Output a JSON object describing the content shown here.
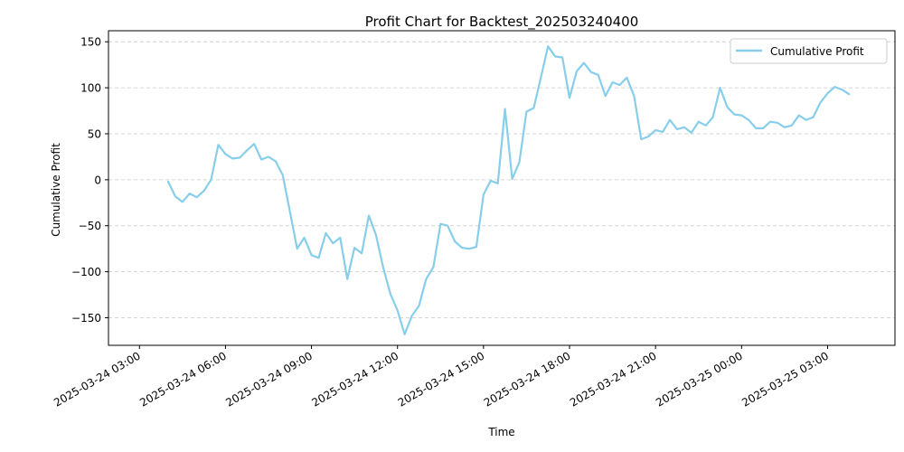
{
  "chart_data": {
    "type": "line",
    "title": "Profit Chart for Backtest_202503240400",
    "xlabel": "Time",
    "ylabel": "Cumulative Profit",
    "ylim": [
      -180,
      162
    ],
    "xlim_hours_from_start": [
      -1.08,
      26.35
    ],
    "x_ticks": [
      {
        "label": "2025-03-24 03:00",
        "hour": 0
      },
      {
        "label": "2025-03-24 06:00",
        "hour": 3
      },
      {
        "label": "2025-03-24 09:00",
        "hour": 6
      },
      {
        "label": "2025-03-24 12:00",
        "hour": 9
      },
      {
        "label": "2025-03-24 15:00",
        "hour": 12
      },
      {
        "label": "2025-03-24 18:00",
        "hour": 15
      },
      {
        "label": "2025-03-24 21:00",
        "hour": 18
      },
      {
        "label": "2025-03-25 00:00",
        "hour": 21
      },
      {
        "label": "2025-03-25 03:00",
        "hour": 24
      }
    ],
    "y_ticks": [
      150,
      100,
      50,
      0,
      -50,
      -100,
      -150
    ],
    "grid": "horizontal dashed",
    "legend_position": "top-right",
    "series": [
      {
        "name": "Cumulative Profit",
        "color": "#87ceeb",
        "points": [
          [
            "2025-03-24 04:00",
            -2
          ],
          [
            "2025-03-24 04:15",
            -18
          ],
          [
            "2025-03-24 04:30",
            -24
          ],
          [
            "2025-03-24 04:45",
            -15
          ],
          [
            "2025-03-24 05:00",
            -19
          ],
          [
            "2025-03-24 05:15",
            -12
          ],
          [
            "2025-03-24 05:30",
            0
          ],
          [
            "2025-03-24 05:45",
            38
          ],
          [
            "2025-03-24 06:00",
            28
          ],
          [
            "2025-03-24 06:15",
            23
          ],
          [
            "2025-03-24 06:30",
            24
          ],
          [
            "2025-03-24 06:45",
            32
          ],
          [
            "2025-03-24 07:00",
            39
          ],
          [
            "2025-03-24 07:15",
            22
          ],
          [
            "2025-03-24 07:30",
            25
          ],
          [
            "2025-03-24 07:45",
            20
          ],
          [
            "2025-03-24 08:00",
            5
          ],
          [
            "2025-03-24 08:15",
            -35
          ],
          [
            "2025-03-24 08:30",
            -75
          ],
          [
            "2025-03-24 08:45",
            -63
          ],
          [
            "2025-03-24 09:00",
            -82
          ],
          [
            "2025-03-24 09:15",
            -85
          ],
          [
            "2025-03-24 09:30",
            -58
          ],
          [
            "2025-03-24 09:45",
            -69
          ],
          [
            "2025-03-24 10:00",
            -63
          ],
          [
            "2025-03-24 10:15",
            -108
          ],
          [
            "2025-03-24 10:30",
            -74
          ],
          [
            "2025-03-24 10:45",
            -80
          ],
          [
            "2025-03-24 11:00",
            -39
          ],
          [
            "2025-03-24 11:15",
            -60
          ],
          [
            "2025-03-24 11:30",
            -95
          ],
          [
            "2025-03-24 11:45",
            -124
          ],
          [
            "2025-03-24 12:00",
            -142
          ],
          [
            "2025-03-24 12:15",
            -168
          ],
          [
            "2025-03-24 12:30",
            -148
          ],
          [
            "2025-03-24 12:45",
            -137
          ],
          [
            "2025-03-24 13:00",
            -108
          ],
          [
            "2025-03-24 13:15",
            -95
          ],
          [
            "2025-03-24 13:30",
            -48
          ],
          [
            "2025-03-24 13:45",
            -50
          ],
          [
            "2025-03-24 14:00",
            -67
          ],
          [
            "2025-03-24 14:15",
            -74
          ],
          [
            "2025-03-24 14:30",
            -75
          ],
          [
            "2025-03-24 14:45",
            -73
          ],
          [
            "2025-03-24 15:00",
            -16
          ],
          [
            "2025-03-24 15:15",
            -1
          ],
          [
            "2025-03-24 15:30",
            -4
          ],
          [
            "2025-03-24 15:45",
            77
          ],
          [
            "2025-03-24 16:00",
            1
          ],
          [
            "2025-03-24 16:15",
            19
          ],
          [
            "2025-03-24 16:30",
            74
          ],
          [
            "2025-03-24 16:45",
            78
          ],
          [
            "2025-03-24 17:00",
            111
          ],
          [
            "2025-03-24 17:15",
            145
          ],
          [
            "2025-03-24 17:30",
            134
          ],
          [
            "2025-03-24 17:45",
            133
          ],
          [
            "2025-03-24 18:00",
            89
          ],
          [
            "2025-03-24 18:15",
            118
          ],
          [
            "2025-03-24 18:30",
            127
          ],
          [
            "2025-03-24 18:45",
            117
          ],
          [
            "2025-03-24 19:00",
            114
          ],
          [
            "2025-03-24 19:15",
            91
          ],
          [
            "2025-03-24 19:30",
            106
          ],
          [
            "2025-03-24 19:45",
            103
          ],
          [
            "2025-03-24 20:00",
            111
          ],
          [
            "2025-03-24 20:15",
            91
          ],
          [
            "2025-03-24 20:30",
            44
          ],
          [
            "2025-03-24 20:45",
            47
          ],
          [
            "2025-03-24 21:00",
            54
          ],
          [
            "2025-03-24 21:15",
            52
          ],
          [
            "2025-03-24 21:30",
            65
          ],
          [
            "2025-03-24 21:45",
            55
          ],
          [
            "2025-03-24 22:00",
            57
          ],
          [
            "2025-03-24 22:15",
            51
          ],
          [
            "2025-03-24 22:30",
            63
          ],
          [
            "2025-03-24 22:45",
            59
          ],
          [
            "2025-03-24 23:00",
            68
          ],
          [
            "2025-03-24 23:15",
            100
          ],
          [
            "2025-03-24 23:30",
            79
          ],
          [
            "2025-03-24 23:45",
            71
          ],
          [
            "2025-03-25 00:00",
            70
          ],
          [
            "2025-03-25 00:15",
            65
          ],
          [
            "2025-03-25 00:30",
            56
          ],
          [
            "2025-03-25 00:45",
            56
          ],
          [
            "2025-03-25 01:00",
            63
          ],
          [
            "2025-03-25 01:15",
            62
          ],
          [
            "2025-03-25 01:30",
            57
          ],
          [
            "2025-03-25 01:45",
            59
          ],
          [
            "2025-03-25 02:00",
            70
          ],
          [
            "2025-03-25 02:15",
            65
          ],
          [
            "2025-03-25 02:30",
            68
          ],
          [
            "2025-03-25 02:45",
            84
          ],
          [
            "2025-03-25 03:00",
            94
          ],
          [
            "2025-03-25 03:15",
            101
          ],
          [
            "2025-03-25 03:30",
            98
          ],
          [
            "2025-03-25 03:45",
            93
          ]
        ]
      }
    ]
  }
}
